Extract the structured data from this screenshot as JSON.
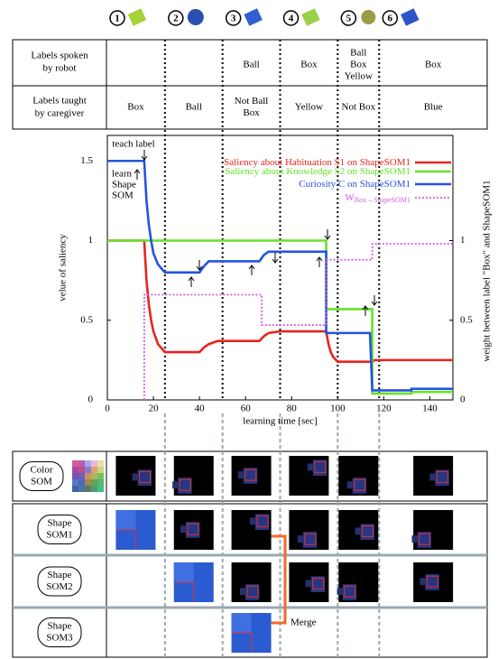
{
  "header": {
    "steps": [
      "1",
      "2",
      "3",
      "4",
      "5",
      "6"
    ]
  },
  "table": {
    "row_headers": [
      [
        "Labels spoken",
        "by robot"
      ],
      [
        "Labels taught",
        "by caregiver"
      ]
    ],
    "rows": [
      [
        [],
        [],
        [
          "Ball"
        ],
        [
          "Box"
        ],
        [
          "Ball",
          "Box",
          "Yellow"
        ],
        [
          "Box"
        ]
      ],
      [
        [
          "Box"
        ],
        [
          "Ball"
        ],
        [
          "Not Ball",
          "Box"
        ],
        [
          "Yellow"
        ],
        [
          "Not Box"
        ],
        [
          "Blue"
        ]
      ]
    ]
  },
  "chart_data": {
    "type": "line",
    "x_label": "learning time [sec]",
    "y_label": "velue of saliency",
    "y2_label": "weight between label \"Box\" and ShapeSOM1",
    "xlim": [
      0,
      150
    ],
    "xticks": [
      0,
      20,
      40,
      60,
      80,
      100,
      120,
      140
    ],
    "ylim": [
      0,
      1.66
    ],
    "yticks": [
      0,
      0.5,
      1,
      1.5
    ],
    "y2lim": [
      0,
      1.66
    ],
    "y2ticks": [
      0,
      0.5,
      1
    ],
    "events": [
      25,
      50,
      75,
      100,
      118
    ],
    "annotations": {
      "teach": "teach label",
      "learn": [
        "learn",
        "Shape",
        "SOM"
      ]
    },
    "series": [
      {
        "name": "Saliency about Habituation S1 on ShapeSOM1",
        "color": "#e8231f",
        "x": [
          0,
          16,
          17,
          18,
          19,
          20,
          22,
          25,
          40,
          42,
          44,
          48,
          66,
          68,
          70,
          75,
          95,
          96,
          97,
          98,
          100,
          115,
          116,
          150
        ],
        "values": [
          1,
          1,
          0.75,
          0.6,
          0.5,
          0.43,
          0.35,
          0.3,
          0.3,
          0.33,
          0.35,
          0.37,
          0.37,
          0.4,
          0.42,
          0.43,
          0.43,
          0.35,
          0.3,
          0.27,
          0.24,
          0.24,
          0.25,
          0.25
        ]
      },
      {
        "name": "Saliency about Knowledge S2 on ShapeSOM1",
        "color": "#66e22a",
        "x": [
          0,
          95,
          95,
          115,
          115,
          132,
          132,
          150
        ],
        "values": [
          1,
          1,
          0.57,
          0.57,
          0.04,
          0.04,
          0.05,
          0.05
        ]
      },
      {
        "name": "Curiosity C on ShapeSOM1",
        "color": "#2553e0",
        "x": [
          0,
          16,
          17,
          18,
          19,
          20,
          22,
          25,
          40,
          42,
          44,
          66,
          68,
          70,
          95,
          95,
          114,
          115,
          132,
          132,
          150
        ],
        "values": [
          1.5,
          1.5,
          1.25,
          1.1,
          1.0,
          0.92,
          0.85,
          0.8,
          0.8,
          0.84,
          0.87,
          0.87,
          0.91,
          0.93,
          0.93,
          0.42,
          0.42,
          0.06,
          0.06,
          0.07,
          0.07
        ]
      },
      {
        "name": "W",
        "name_subscript": "Box→ShapeSOM1",
        "color": "#d65ce0",
        "axis": "y2",
        "dash": "dotted",
        "x": [
          16,
          16,
          67,
          67,
          95,
          95,
          115,
          115,
          150
        ],
        "values": [
          0,
          0.66,
          0.66,
          0.47,
          0.47,
          0.88,
          0.88,
          0.98,
          0.98
        ]
      }
    ]
  },
  "som_panel": {
    "labels": [
      [
        "Color",
        "SOM"
      ],
      [
        "Shape",
        "SOM1"
      ],
      [
        "Shape",
        "SOM2"
      ],
      [
        "Shape",
        "SOM3"
      ]
    ],
    "merge": "Merge"
  }
}
